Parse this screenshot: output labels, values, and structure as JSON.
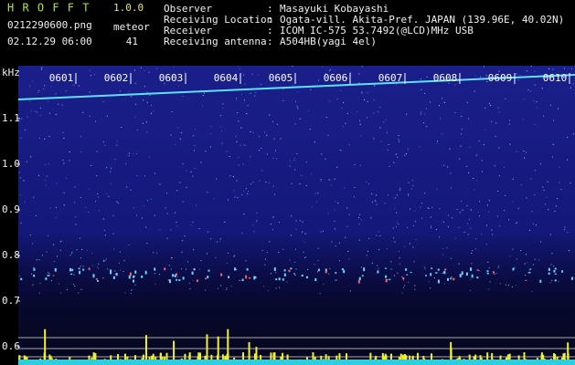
{
  "header": {
    "app_name": "H R O F F T",
    "version": "1.0.0",
    "file": "0212290600.png",
    "datetime": "02.12.29 06:00",
    "meteor_label": "meteor",
    "meteor_count": 41,
    "separator": ":",
    "fields": [
      {
        "label": "Observer",
        "value": "Masayuki Kobayashi"
      },
      {
        "label": "Receiving Location",
        "value": "Ogata-vill. Akita-Pref. JAPAN (139.96E, 40.02N)"
      },
      {
        "label": "Receiver",
        "value": "ICOM IC-575 53.7492(@LCD)MHz USB"
      },
      {
        "label": "Receiving antenna",
        "value": "A504HB(yagi 4el)"
      }
    ]
  },
  "spectrogram": {
    "y_unit": "kHz",
    "ylim": [
      0.56,
      1.21
    ],
    "yticks": [
      1.1,
      {
        "value": 1.0,
        "label": "1.0"
      },
      0.9,
      0.8,
      0.7,
      0.6
    ],
    "time_labels": [
      "0601",
      "0602",
      "0603",
      "0604",
      "0605",
      "0606",
      "0607",
      "0608",
      "0609",
      "0610"
    ]
  }
}
